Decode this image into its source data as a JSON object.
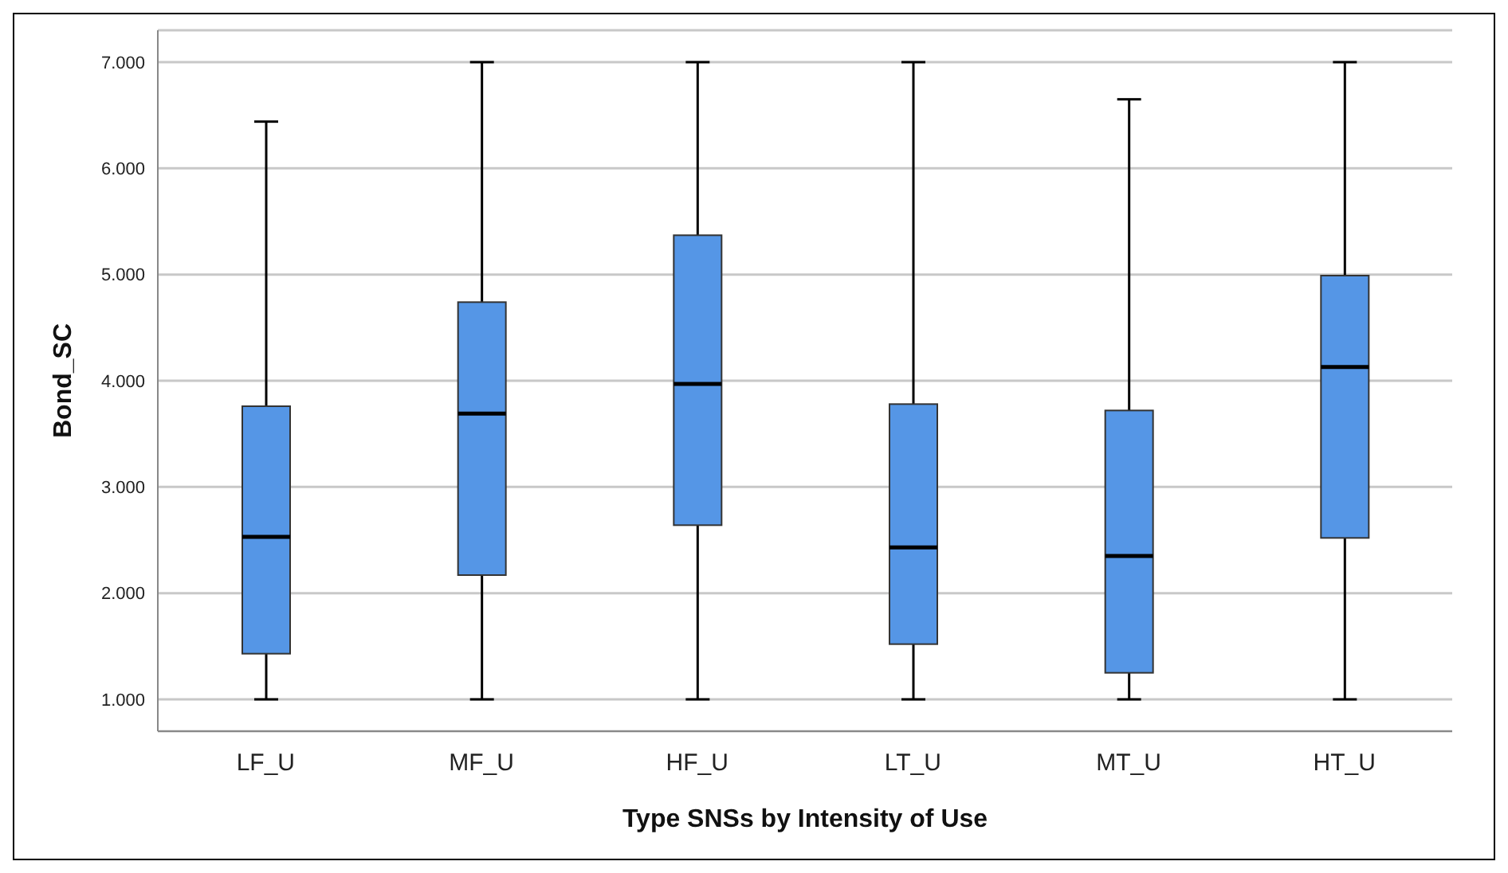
{
  "chart_data": {
    "type": "box",
    "xlabel": "Type SNSs by Intensity of Use",
    "ylabel": "Bond_SC",
    "categories": [
      "LF_U",
      "MF_U",
      "HF_U",
      "LT_U",
      "MT_U",
      "HT_U"
    ],
    "color": "#5596e6",
    "boxes": [
      {
        "low": 1,
        "q1": 1.43,
        "median": 2.53,
        "q3": 3.76,
        "high": 6.44
      },
      {
        "low": 1,
        "q1": 2.17,
        "median": 3.69,
        "q3": 4.74,
        "high": 7
      },
      {
        "low": 1,
        "q1": 2.64,
        "median": 3.97,
        "q3": 5.37,
        "high": 7
      },
      {
        "low": 1,
        "q1": 1.52,
        "median": 2.43,
        "q3": 3.78,
        "high": 7
      },
      {
        "low": 1,
        "q1": 1.25,
        "median": 2.35,
        "q3": 3.72,
        "high": 6.65
      },
      {
        "low": 1,
        "q1": 2.52,
        "median": 4.13,
        "q3": 4.99,
        "high": 7
      }
    ],
    "ylim": [
      0.7,
      7.3
    ],
    "yticks": [
      {
        "value": 1,
        "label": "1.000"
      },
      {
        "value": 2,
        "label": "2.000"
      },
      {
        "value": 3,
        "label": "3.000"
      },
      {
        "value": 4,
        "label": "4.000"
      },
      {
        "value": 5,
        "label": "5.000"
      },
      {
        "value": 6,
        "label": "6.000"
      },
      {
        "value": 7,
        "label": "7.000"
      }
    ],
    "grid": "y"
  }
}
